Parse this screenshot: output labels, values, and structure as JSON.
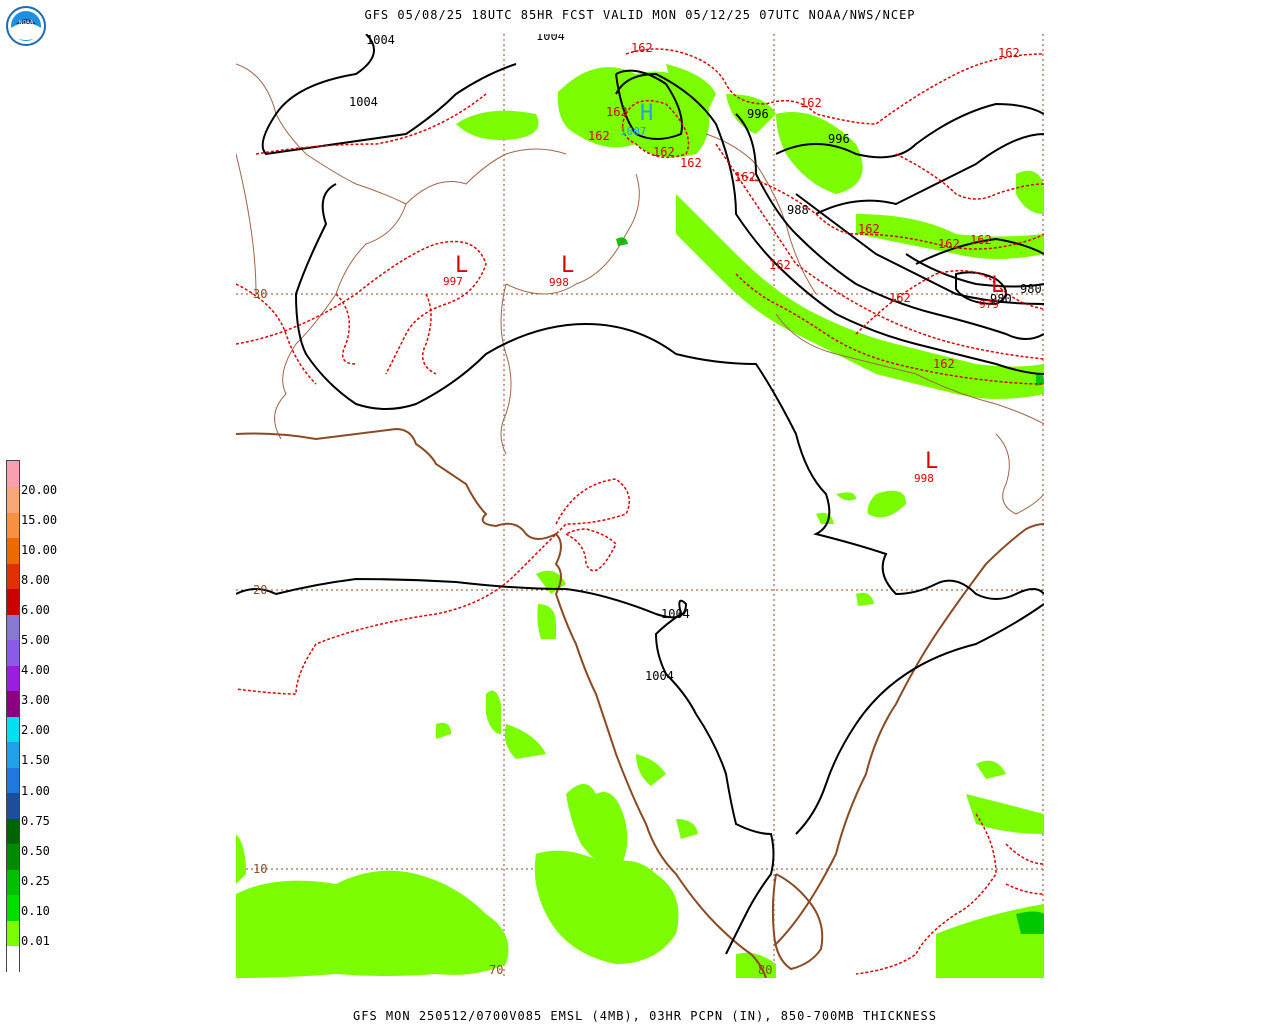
{
  "header": {
    "title": "GFS 05/08/25 18UTC 85HR FCST VALID MON 05/12/25 07UTC NOAA/NWS/NCEP"
  },
  "footer": {
    "caption": "GFS MON 250512/0700V085 EMSL (4MB), 03HR PCPN (IN), 850-700MB THICKNESS"
  },
  "logo": {
    "icon": "noaa-logo-icon",
    "text": "NOAA"
  },
  "legend": {
    "swatches": [
      {
        "color": "#ffffff"
      },
      {
        "color": "#7cfc00"
      },
      {
        "color": "#00e000"
      },
      {
        "color": "#00c000"
      },
      {
        "color": "#008c00"
      },
      {
        "color": "#006400"
      },
      {
        "color": "#1e4e9a"
      },
      {
        "color": "#1f78e0"
      },
      {
        "color": "#1ea0ea"
      },
      {
        "color": "#00e0f0"
      },
      {
        "color": "#8c0080"
      },
      {
        "color": "#9a1ee0"
      },
      {
        "color": "#8a5ae8"
      },
      {
        "color": "#8878d0"
      },
      {
        "color": "#cc0000"
      },
      {
        "color": "#e03000"
      },
      {
        "color": "#ee6a00"
      },
      {
        "color": "#f89040"
      },
      {
        "color": "#f8a878"
      },
      {
        "color": "#f8a0b0"
      }
    ],
    "labels": [
      "0.01",
      "0.10",
      "0.25",
      "0.50",
      "0.75",
      "1.00",
      "1.50",
      "2.00",
      "3.00",
      "4.00",
      "5.00",
      "6.00",
      "8.00",
      "10.00",
      "15.00",
      "20.00"
    ]
  },
  "map": {
    "grid_labels": {
      "lat": [
        "30",
        "20",
        "10"
      ],
      "lon": [
        "70",
        "80"
      ]
    },
    "pressure_labels": [
      "1004",
      "1004",
      "1004",
      "996",
      "996",
      "988",
      "980",
      "980",
      "1004",
      "1004"
    ],
    "thickness_labels": [
      "162",
      "162",
      "162",
      "162",
      "162",
      "162",
      "162",
      "162",
      "162",
      "162",
      "162",
      "162",
      "162",
      "162"
    ],
    "low_centers": [
      {
        "symbol": "L",
        "value": "997"
      },
      {
        "symbol": "L",
        "value": "998"
      },
      {
        "symbol": "L",
        "value": "980",
        "value2": "979"
      },
      {
        "symbol": "L",
        "value": "998"
      }
    ],
    "high_centers": [
      {
        "symbol": "H",
        "value": "1007"
      }
    ],
    "colors": {
      "isobar": "#000000",
      "thickness": "#dd0000",
      "coastline": "#8b4a22",
      "border": "#a0644a",
      "grid": "#8b4a22",
      "precip_light": "#7cfc00",
      "precip_mid": "#00c800",
      "high": "#1ea0ea",
      "low": "#dd0000"
    }
  }
}
